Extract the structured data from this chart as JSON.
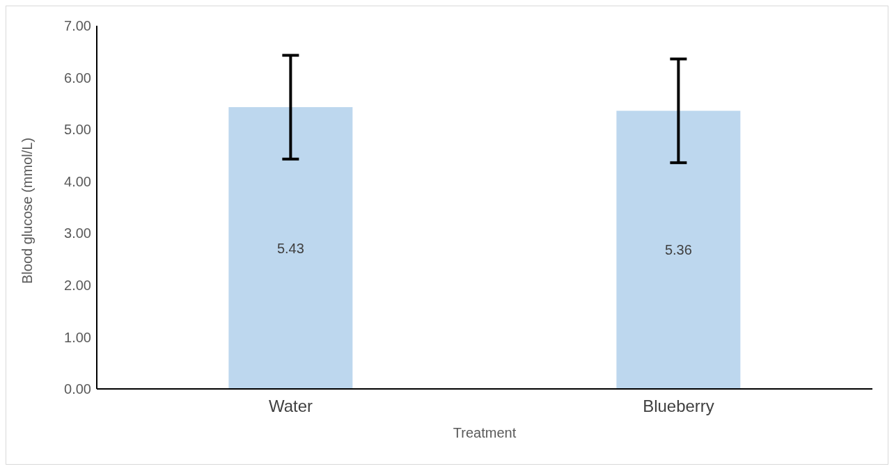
{
  "chart_data": {
    "type": "bar",
    "xlabel": "Treatment",
    "ylabel": "Blood glucose (mmol/L)",
    "categories": [
      "Water",
      "Blueberry"
    ],
    "values": [
      5.43,
      5.36
    ],
    "errors": [
      1.0,
      1.0
    ],
    "color": "#bdd7ee",
    "data_labels": true,
    "grid": false,
    "ylim": [
      0,
      7
    ],
    "yticks": [
      {
        "value": 0,
        "label": "0.00"
      },
      {
        "value": 1,
        "label": "1.00"
      },
      {
        "value": 2,
        "label": "2.00"
      },
      {
        "value": 3,
        "label": "3.00"
      },
      {
        "value": 4,
        "label": "4.00"
      },
      {
        "value": 5,
        "label": "5.00"
      },
      {
        "value": 6,
        "label": "6.00"
      },
      {
        "value": 7,
        "label": "7.00"
      }
    ]
  }
}
